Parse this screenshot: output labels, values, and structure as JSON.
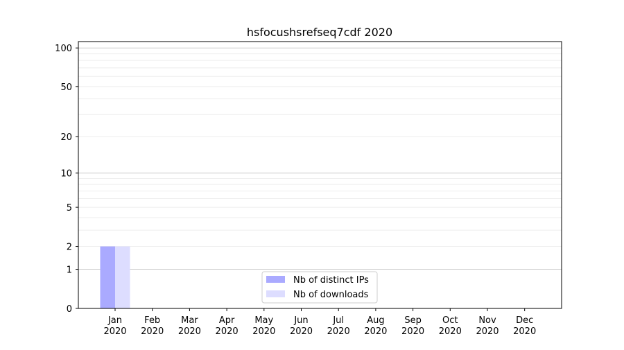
{
  "chart_data": {
    "type": "bar",
    "title": "hsfocushsrefseq7cdf 2020",
    "xlabel": "",
    "ylabel": "",
    "y_scale": "log(1+y)",
    "ylim": [
      0,
      116
    ],
    "y_ticks": [
      0,
      1,
      2,
      5,
      10,
      20,
      50,
      100
    ],
    "grid": true,
    "legend_position": "lower-center",
    "categories": [
      "Jan\n2020",
      "Feb\n2020",
      "Mar\n2020",
      "Apr\n2020",
      "May\n2020",
      "Jun\n2020",
      "Jul\n2020",
      "Aug\n2020",
      "Sep\n2020",
      "Oct\n2020",
      "Nov\n2020",
      "Dec\n2020"
    ],
    "series": [
      {
        "name": "Nb of distinct IPs",
        "color": "#aaaaff",
        "values": [
          2,
          0,
          0,
          0,
          0,
          0,
          0,
          0,
          0,
          0,
          0,
          0
        ]
      },
      {
        "name": "Nb of downloads",
        "color": "#ddddff",
        "values": [
          2,
          0,
          0,
          0,
          0,
          0,
          0,
          0,
          0,
          0,
          0,
          0
        ]
      }
    ]
  }
}
